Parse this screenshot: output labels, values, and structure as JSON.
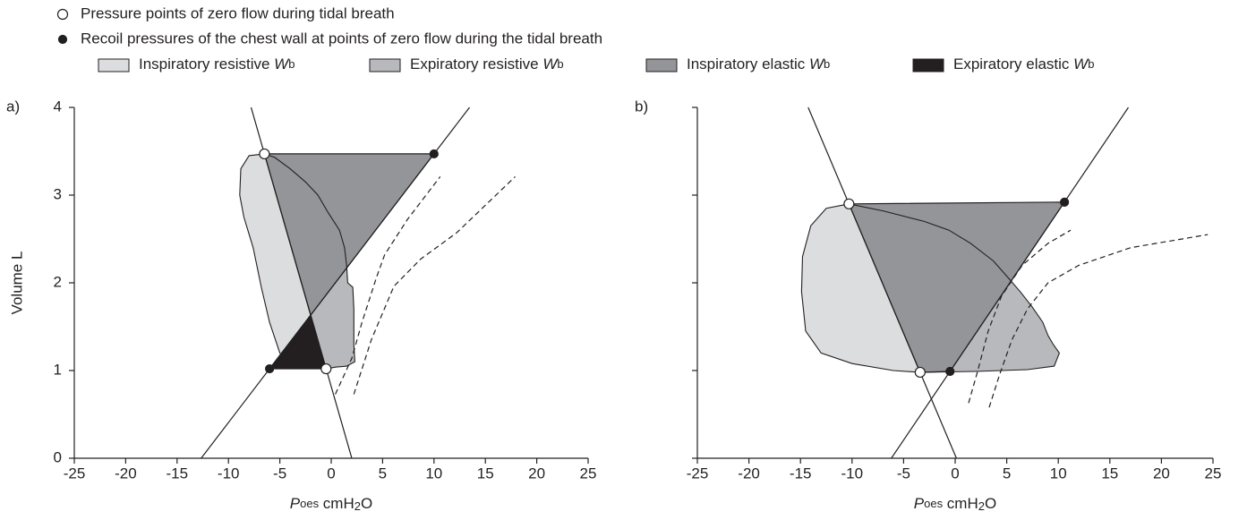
{
  "legend": [
    {
      "text": "Pressure points of zero flow during tidal breath",
      "marker": "open"
    },
    {
      "text": "Recoil pressures of the chest wall at points of zero flow during the tidal breath",
      "marker": "filled"
    },
    {
      "text": "Inspiratory resistive ",
      "symbol": "W",
      "subscript": "b",
      "color": "#dcdddf"
    },
    {
      "text": "Expiratory resistive ",
      "symbol": "W",
      "subscript": "b",
      "color": "#b8b9bc"
    },
    {
      "text": "Inspiratory elastic ",
      "symbol": "W",
      "subscript": "b",
      "color": "#939598"
    },
    {
      "text": "Expiratory elastic ",
      "symbol": "W",
      "subscript": "b",
      "color": "#231f20"
    }
  ],
  "chart_data": [
    {
      "type": "area",
      "panel_label": "a)",
      "ylabel": "Volume L",
      "xlabel": {
        "symbol": "P",
        "subscript": "oes",
        "unit": " cmH",
        "unit_sub": "2",
        "unit_end": "O"
      },
      "xlim": [
        -25,
        25
      ],
      "xticks": [
        -25,
        -20,
        -15,
        -10,
        -5,
        0,
        5,
        10,
        15,
        20,
        25
      ],
      "ylim": [
        0,
        4
      ],
      "yticks": [
        0,
        1,
        2,
        3,
        4
      ],
      "ytick_labels": true,
      "inspiration": {
        "fill": "#dcdddf",
        "x": [
          -0.5,
          -2,
          -3.8,
          -5,
          -6,
          -6.8,
          -7.6,
          -8.5,
          -8.9,
          -8.8,
          -8,
          -6.5
        ],
        "y": [
          1.02,
          1.03,
          1.06,
          1.2,
          1.55,
          1.95,
          2.4,
          2.75,
          3.0,
          3.3,
          3.45,
          3.47
        ]
      },
      "expiration": {
        "fill": "#b8b9bc",
        "x": [
          -6.5,
          -5.5,
          -4,
          -2.5,
          -1.3,
          -0.3,
          0.8,
          1.3,
          1.5,
          1.6,
          2.1,
          2.2,
          2.2,
          2.3,
          1.5,
          0.5,
          -0.5
        ],
        "y": [
          3.47,
          3.43,
          3.3,
          3.15,
          3.0,
          2.8,
          2.6,
          2.4,
          2.2,
          2.0,
          1.95,
          1.7,
          1.3,
          1.1,
          1.05,
          1.04,
          1.02
        ]
      },
      "elastic_regions": [
        {
          "fill": "#939598",
          "x": [
            -6.5,
            10,
            -2.0
          ],
          "y": [
            3.47,
            3.47,
            1.632
          ]
        },
        {
          "fill": "#231f20",
          "x": [
            -6,
            -0.5,
            -2.0
          ],
          "y": [
            1.02,
            1.02,
            1.632
          ]
        }
      ],
      "lines": [
        {
          "x": [
            -12.66,
            13.46
          ],
          "y": [
            0,
            4
          ]
        },
        {
          "x": [
            -7.8,
            2.0
          ],
          "y": [
            4,
            0
          ]
        }
      ],
      "dashed": [
        {
          "x": [
            0.4,
            2.0,
            3.0,
            4.4,
            5.2,
            7.4,
            10.6
          ],
          "y": [
            0.73,
            1.14,
            1.55,
            2.06,
            2.32,
            2.72,
            3.21
          ]
        },
        {
          "x": [
            2.2,
            3.9,
            6.1,
            8.7,
            12.2,
            17.9
          ],
          "y": [
            0.73,
            1.35,
            1.96,
            2.27,
            2.57,
            3.21
          ]
        }
      ],
      "zero_flow": {
        "x": [
          -6.5,
          -0.5
        ],
        "y": [
          3.47,
          1.02
        ]
      },
      "recoil": {
        "x": [
          -6,
          10
        ],
        "y": [
          1.02,
          3.47
        ]
      }
    },
    {
      "type": "area",
      "panel_label": "b)",
      "xlabel": {
        "symbol": "P",
        "subscript": "oes",
        "unit": " cmH",
        "unit_sub": "2",
        "unit_end": "O"
      },
      "xlim": [
        -25,
        25
      ],
      "xticks": [
        -25,
        -20,
        -15,
        -10,
        -5,
        0,
        5,
        10,
        15,
        20,
        25
      ],
      "ylim": [
        0,
        4
      ],
      "yticks": [
        0,
        1,
        2,
        3,
        4
      ],
      "ytick_labels": false,
      "inspiration": {
        "fill": "#dcdddf",
        "x": [
          -3.4,
          -6,
          -10,
          -13,
          -14.5,
          -14.9,
          -14.8,
          -14,
          -12.5,
          -10.3
        ],
        "y": [
          0.98,
          1.0,
          1.08,
          1.2,
          1.45,
          1.9,
          2.3,
          2.65,
          2.85,
          2.9
        ]
      },
      "expiration": {
        "fill": "#b8b9bc",
        "x": [
          -10.3,
          -7,
          -3,
          -0.6,
          1.5,
          3.7,
          5.2,
          6.3,
          7.5,
          8.5,
          9,
          9.5,
          10.1,
          9.6,
          7,
          2,
          -3.4
        ],
        "y": [
          2.9,
          2.82,
          2.7,
          2.6,
          2.45,
          2.25,
          2.05,
          1.9,
          1.72,
          1.55,
          1.4,
          1.3,
          1.2,
          1.05,
          1.01,
          0.99,
          0.98
        ]
      },
      "elastic_regions": [
        {
          "fill": "#939598",
          "x": [
            -10.3,
            10.6,
            -0.5,
            -3.4
          ],
          "y": [
            2.9,
            2.92,
            0.99,
            0.98
          ]
        }
      ],
      "lines": [
        {
          "x": [
            -6.19,
            16.8
          ],
          "y": [
            0,
            4
          ]
        },
        {
          "x": [
            -14.25,
            0.12
          ],
          "y": [
            4,
            0
          ]
        }
      ],
      "dashed": [
        {
          "x": [
            1.3,
            2.2,
            3.2,
            4.5,
            6.5,
            9,
            11.2
          ],
          "y": [
            0.63,
            1.0,
            1.45,
            1.85,
            2.2,
            2.45,
            2.6
          ]
        },
        {
          "x": [
            3.3,
            4.3,
            5.5,
            7,
            9,
            12,
            17,
            24.5
          ],
          "y": [
            0.58,
            0.95,
            1.35,
            1.7,
            2.0,
            2.2,
            2.4,
            2.55
          ]
        }
      ],
      "zero_flow": {
        "x": [
          -10.3,
          -3.4
        ],
        "y": [
          2.9,
          0.98
        ]
      },
      "recoil": {
        "x": [
          -0.5,
          10.6
        ],
        "y": [
          0.99,
          2.92
        ]
      }
    }
  ]
}
